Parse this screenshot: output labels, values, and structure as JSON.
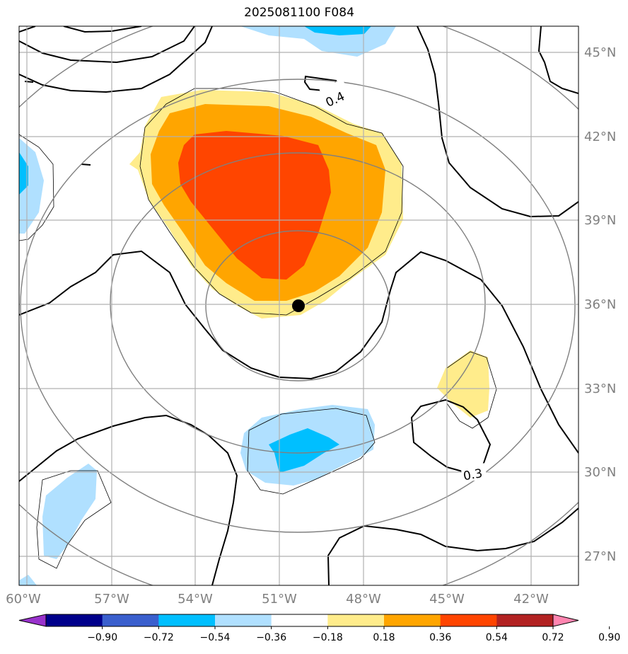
{
  "title": "2025081100 F084",
  "map": {
    "lon_ticks": [
      "60°W",
      "57°W",
      "54°W",
      "51°W",
      "48°W",
      "45°W",
      "42°W"
    ],
    "lat_ticks": [
      "45°N",
      "42°N",
      "39°N",
      "36°N",
      "33°N",
      "30°N",
      "27°N"
    ],
    "contour_labels": [
      "0.4",
      "0.3"
    ],
    "center_marker": "storm-center"
  },
  "colorbar": {
    "tick_labels": [
      "−0.90",
      "−0.72",
      "−0.54",
      "−0.36",
      "−0.18",
      "0.18",
      "0.36",
      "0.54",
      "0.72",
      "0.90"
    ],
    "colors": [
      "#9932cc",
      "#00008b",
      "#3a5fcd",
      "#00bfff",
      "#b0e0ff",
      "#ffffff",
      "#ffec8b",
      "#ffa500",
      "#ff4500",
      "#b22222",
      "#ff85b0"
    ]
  }
}
